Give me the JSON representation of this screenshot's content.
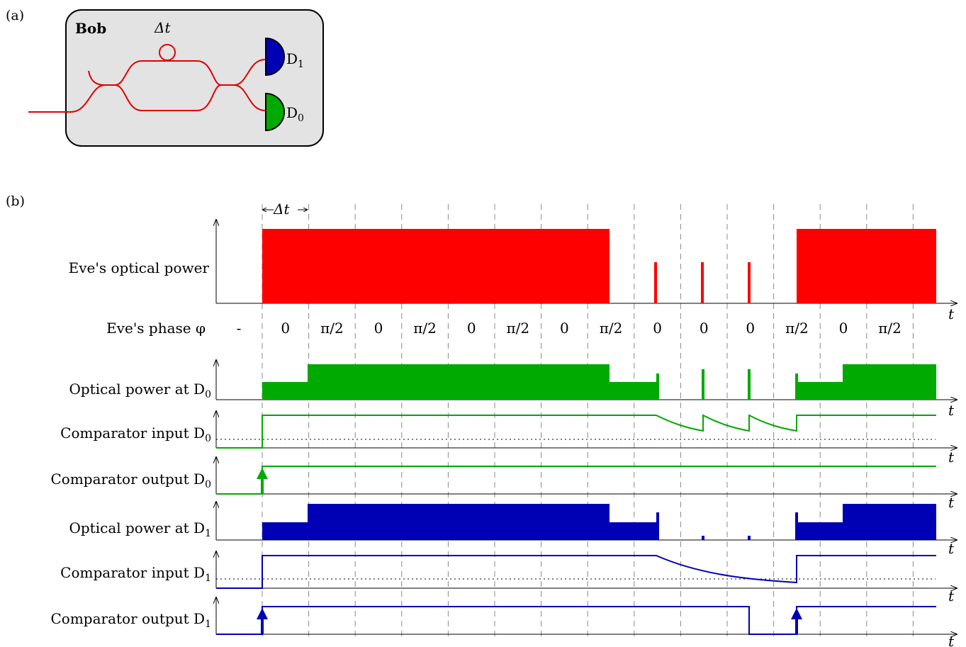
{
  "panel_a": {
    "label": "(a)",
    "box_title": "Bob",
    "delay_label": "Δt",
    "detectors": [
      {
        "name": "D",
        "sub": "1",
        "color": "#0000b4"
      },
      {
        "name": "D",
        "sub": "0",
        "color": "#00aa00"
      }
    ],
    "fiber_color": "#e00000"
  },
  "panel_b": {
    "label": "(b)",
    "dt_label": "Δt",
    "time_axis_label": "t",
    "phase_label": "Eve's phase φ",
    "phases": [
      "-",
      "0",
      "π/2",
      "0",
      "π/2",
      "0",
      "π/2",
      "0",
      "π/2",
      "0",
      "0",
      "0",
      "π/2",
      "0",
      "π/2"
    ],
    "rows": [
      {
        "id": "eve-power",
        "label": "Eve's optical power",
        "sub": "",
        "color": "#ff0000"
      },
      {
        "id": "d0-power",
        "label": "Optical power at D",
        "sub": "0",
        "color": "#00aa00"
      },
      {
        "id": "d0-comp-in",
        "label": "Comparator input D",
        "sub": "0",
        "color": "#00aa00"
      },
      {
        "id": "d0-comp-out",
        "label": "Comparator output D",
        "sub": "0",
        "color": "#00aa00"
      },
      {
        "id": "d1-power",
        "label": "Optical power at D",
        "sub": "1",
        "color": "#0000b4"
      },
      {
        "id": "d1-comp-in",
        "label": "Comparator input D",
        "sub": "1",
        "color": "#0000b4"
      },
      {
        "id": "d1-comp-out",
        "label": "Comparator output D",
        "sub": "1",
        "color": "#0000b4"
      }
    ]
  }
}
